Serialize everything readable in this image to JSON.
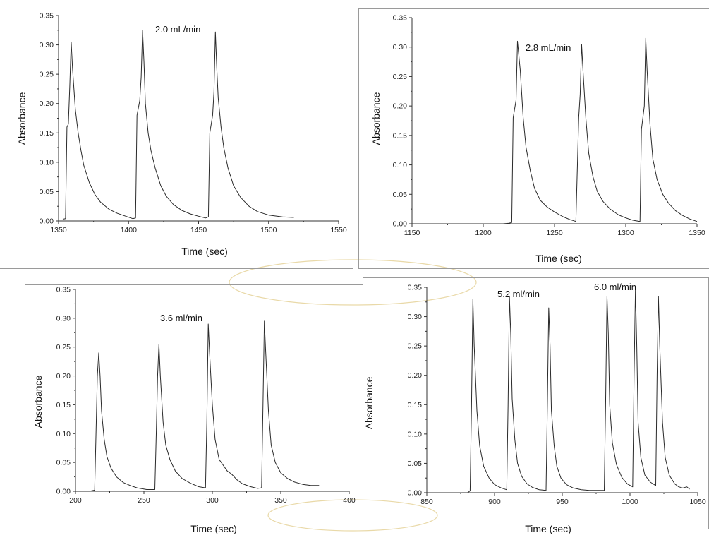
{
  "colors": {
    "trace": "#2a2a2a",
    "axis": "#333333",
    "frame": "#9a9a9a",
    "watermark": "#e9d9a8"
  },
  "chart_data": [
    {
      "type": "line",
      "title": "",
      "xlabel": "Time (sec)",
      "ylabel": "Absorbance",
      "xlim": [
        1350,
        1550
      ],
      "ylim": [
        0,
        0.35
      ],
      "xticks": [
        1350,
        1400,
        1450,
        1500,
        1550
      ],
      "yticks": [
        0.0,
        0.05,
        0.1,
        0.15,
        0.2,
        0.25,
        0.3,
        0.35
      ],
      "annotations": [
        {
          "text": "2.0 mL/min",
          "x": 1380,
          "y": 0.31
        }
      ],
      "series": [
        {
          "x": [
            1353,
            1355,
            1356,
            1357,
            1358,
            1359,
            1360,
            1362,
            1364,
            1366,
            1368,
            1372,
            1376,
            1380,
            1386,
            1392,
            1398,
            1403,
            1405,
            1406,
            1408,
            1409,
            1410,
            1411,
            1412,
            1414,
            1416,
            1419,
            1423,
            1427,
            1432,
            1438,
            1444,
            1450,
            1455,
            1457,
            1458,
            1460,
            1461,
            1462,
            1463,
            1464,
            1466,
            1468,
            1471,
            1475,
            1480,
            1486,
            1492,
            1500,
            1510,
            1518
          ],
          "y": [
            0.003,
            0.004,
            0.16,
            0.165,
            0.23,
            0.305,
            0.26,
            0.19,
            0.15,
            0.12,
            0.095,
            0.065,
            0.045,
            0.032,
            0.02,
            0.013,
            0.008,
            0.004,
            0.005,
            0.18,
            0.205,
            0.245,
            0.325,
            0.27,
            0.2,
            0.15,
            0.12,
            0.09,
            0.06,
            0.042,
            0.028,
            0.018,
            0.012,
            0.008,
            0.005,
            0.007,
            0.15,
            0.18,
            0.22,
            0.322,
            0.26,
            0.21,
            0.16,
            0.125,
            0.09,
            0.06,
            0.04,
            0.025,
            0.016,
            0.01,
            0.007,
            0.006
          ]
        }
      ]
    },
    {
      "type": "line",
      "title": "",
      "xlabel": "Time (sec)",
      "ylabel": "Absorbance",
      "xlim": [
        1150,
        1350
      ],
      "ylim": [
        0,
        0.35
      ],
      "xticks": [
        1150,
        1200,
        1250,
        1300,
        1350
      ],
      "yticks": [
        0.0,
        0.05,
        0.1,
        0.15,
        0.2,
        0.25,
        0.3,
        0.35
      ],
      "annotations": [
        {
          "text": "2.8 mL/min",
          "x": 1228,
          "y": 0.305
        }
      ],
      "series": [
        {
          "x": [
            1214,
            1218,
            1220,
            1221,
            1223,
            1224,
            1226,
            1228,
            1230,
            1233,
            1236,
            1240,
            1245,
            1250,
            1256,
            1261,
            1265,
            1267,
            1268,
            1269,
            1270,
            1272,
            1274,
            1277,
            1280,
            1284,
            1289,
            1295,
            1300,
            1305,
            1310,
            1311,
            1313,
            1314,
            1315,
            1317,
            1319,
            1322,
            1326,
            1330,
            1335,
            1340,
            1345,
            1350
          ],
          "y": [
            0.0,
            0.001,
            0.002,
            0.18,
            0.21,
            0.31,
            0.26,
            0.18,
            0.13,
            0.09,
            0.06,
            0.04,
            0.028,
            0.02,
            0.012,
            0.007,
            0.004,
            0.18,
            0.22,
            0.305,
            0.26,
            0.18,
            0.12,
            0.08,
            0.055,
            0.038,
            0.025,
            0.015,
            0.01,
            0.006,
            0.004,
            0.16,
            0.2,
            0.315,
            0.26,
            0.17,
            0.11,
            0.075,
            0.05,
            0.035,
            0.022,
            0.014,
            0.008,
            0.004
          ]
        }
      ]
    },
    {
      "type": "line",
      "title": "",
      "xlabel": "Time (sec)",
      "ylabel": "Absorbance",
      "xlim": [
        200,
        400
      ],
      "ylim": [
        0,
        0.35
      ],
      "xticks": [
        200,
        250,
        300,
        350,
        400
      ],
      "yticks": [
        0.0,
        0.05,
        0.1,
        0.15,
        0.2,
        0.25,
        0.3,
        0.35
      ],
      "annotations": [
        {
          "text": "3.6 ml/min",
          "x": 237,
          "y": 0.295
        }
      ],
      "series": [
        {
          "x": [
            200,
            205,
            210,
            214,
            215,
            216,
            217,
            218,
            219,
            221,
            223,
            226,
            230,
            235,
            240,
            245,
            252,
            258,
            259,
            260,
            261,
            262,
            264,
            266,
            269,
            273,
            278,
            284,
            290,
            295,
            296,
            297,
            298,
            300,
            302,
            305,
            308,
            311,
            314,
            318,
            322,
            328,
            333,
            336,
            337,
            338,
            339,
            341,
            343,
            346,
            350,
            355,
            360,
            366,
            372,
            378
          ],
          "y": [
            0.0,
            0.0,
            0.0,
            0.002,
            0.1,
            0.2,
            0.24,
            0.2,
            0.14,
            0.09,
            0.06,
            0.04,
            0.025,
            0.015,
            0.01,
            0.006,
            0.003,
            0.003,
            0.1,
            0.2,
            0.255,
            0.2,
            0.12,
            0.08,
            0.055,
            0.035,
            0.022,
            0.014,
            0.008,
            0.006,
            0.12,
            0.29,
            0.24,
            0.15,
            0.09,
            0.055,
            0.045,
            0.035,
            0.03,
            0.02,
            0.013,
            0.008,
            0.005,
            0.006,
            0.15,
            0.295,
            0.24,
            0.14,
            0.08,
            0.05,
            0.032,
            0.022,
            0.016,
            0.012,
            0.01,
            0.01
          ]
        }
      ]
    },
    {
      "type": "line",
      "title": "",
      "xlabel": "Time (sec)",
      "ylabel": "Absorbance",
      "xlim": [
        850,
        1050
      ],
      "ylim": [
        0,
        0.35
      ],
      "xticks": [
        850,
        900,
        950,
        1000,
        1050
      ],
      "yticks": [
        0.0,
        0.05,
        0.1,
        0.15,
        0.2,
        0.25,
        0.3,
        0.35
      ],
      "annotations": [
        {
          "text": "5.2 ml/min",
          "x": 901,
          "y": 0.34
        },
        {
          "text": "6.0 ml/min",
          "x": 993,
          "y": 0.353
        }
      ],
      "series": [
        {
          "x": [
            876,
            880,
            882,
            883,
            884,
            885,
            887,
            889,
            892,
            896,
            900,
            905,
            909,
            910,
            911,
            912,
            913,
            915,
            917,
            920,
            924,
            928,
            933,
            938,
            939,
            940,
            941,
            942,
            944,
            946,
            949,
            953,
            958,
            964,
            970,
            976,
            981,
            982,
            983,
            984,
            985,
            987,
            990,
            994,
            998,
            1002,
            1003,
            1004,
            1005,
            1006,
            1008,
            1011,
            1015,
            1019,
            1020,
            1021,
            1022,
            1024,
            1026,
            1029,
            1033,
            1036,
            1039,
            1042,
            1044
          ],
          "y": [
            0.0,
            0.0,
            0.003,
            0.15,
            0.33,
            0.25,
            0.14,
            0.08,
            0.045,
            0.025,
            0.014,
            0.008,
            0.005,
            0.15,
            0.335,
            0.27,
            0.16,
            0.09,
            0.05,
            0.028,
            0.015,
            0.009,
            0.005,
            0.004,
            0.15,
            0.315,
            0.25,
            0.14,
            0.08,
            0.045,
            0.025,
            0.014,
            0.008,
            0.005,
            0.004,
            0.004,
            0.004,
            0.15,
            0.335,
            0.27,
            0.15,
            0.085,
            0.048,
            0.026,
            0.015,
            0.01,
            0.2,
            0.348,
            0.25,
            0.12,
            0.06,
            0.03,
            0.018,
            0.012,
            0.2,
            0.335,
            0.25,
            0.12,
            0.06,
            0.03,
            0.015,
            0.01,
            0.008,
            0.01,
            0.006
          ]
        }
      ]
    }
  ]
}
